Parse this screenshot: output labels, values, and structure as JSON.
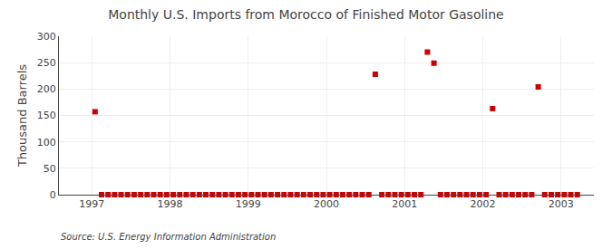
{
  "chart_data": {
    "type": "scatter",
    "title": "Monthly U.S. Imports from Morocco of Finished Motor Gasoline",
    "ylabel": "Thousand Barrels",
    "annotation": "Source: U.S. Energy Information Administration",
    "color": "#cc0000",
    "marker": "square",
    "grid": true,
    "xlim": [
      1996.58,
      2003.42
    ],
    "xticks": [
      1997,
      1998,
      1999,
      2000,
      2001,
      2002,
      2003
    ],
    "ylim": [
      0,
      300
    ],
    "yticks": [
      0,
      50,
      100,
      150,
      200,
      250,
      300
    ],
    "x": [
      1997.0417,
      1997.125,
      1997.2083,
      1997.2917,
      1997.375,
      1997.4583,
      1997.5417,
      1997.625,
      1997.7083,
      1997.7917,
      1997.875,
      1997.9583,
      1998.0417,
      1998.125,
      1998.2083,
      1998.2917,
      1998.375,
      1998.4583,
      1998.5417,
      1998.625,
      1998.7083,
      1998.7917,
      1998.875,
      1998.9583,
      1999.0417,
      1999.125,
      1999.2083,
      1999.2917,
      1999.375,
      1999.4583,
      1999.5417,
      1999.625,
      1999.7083,
      1999.7917,
      1999.875,
      1999.9583,
      2000.0417,
      2000.125,
      2000.2083,
      2000.2917,
      2000.375,
      2000.4583,
      2000.5417,
      2000.625,
      2000.7083,
      2000.7917,
      2000.875,
      2000.9583,
      2001.0417,
      2001.125,
      2001.2083,
      2001.2917,
      2001.375,
      2001.4583,
      2001.5417,
      2001.625,
      2001.7083,
      2001.7917,
      2001.875,
      2001.9583,
      2002.0417,
      2002.125,
      2002.2083,
      2002.2917,
      2002.375,
      2002.4583,
      2002.5417,
      2002.625,
      2002.7083,
      2002.7917,
      2002.875,
      2002.9583,
      2003.0417,
      2003.125,
      2003.2083
    ],
    "values": [
      157,
      0,
      0,
      0,
      0,
      0,
      0,
      0,
      0,
      0,
      0,
      0,
      0,
      0,
      0,
      0,
      0,
      0,
      0,
      0,
      0,
      0,
      0,
      0,
      0,
      0,
      0,
      0,
      0,
      0,
      0,
      0,
      0,
      0,
      0,
      0,
      0,
      0,
      0,
      0,
      0,
      0,
      0,
      228,
      0,
      0,
      0,
      0,
      0,
      0,
      0,
      270,
      249,
      0,
      0,
      0,
      0,
      0,
      0,
      0,
      0,
      163,
      0,
      0,
      0,
      0,
      0,
      0,
      204,
      0,
      0,
      0,
      0,
      0,
      0
    ]
  }
}
